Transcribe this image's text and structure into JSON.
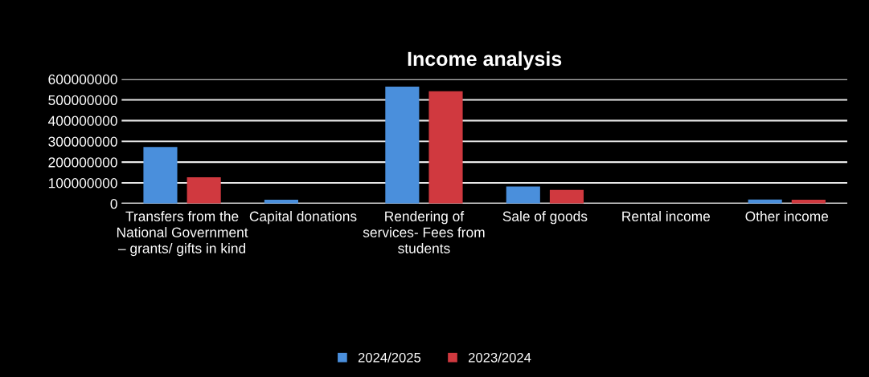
{
  "chart_data": {
    "type": "bar",
    "title": "Income analysis",
    "categories": [
      "Transfers from the National Government – grants/ gifts in kind",
      "Capital donations",
      "Rendering of services- Fees from students",
      "Sale of goods",
      "Rental income",
      "Other income"
    ],
    "series": [
      {
        "name": "2024/2025",
        "color": "#4a8fdc",
        "values": [
          273000000,
          19000000,
          564000000,
          82000000,
          0,
          20000000
        ]
      },
      {
        "name": "2023/2024",
        "color": "#d0393f",
        "values": [
          127000000,
          0,
          542000000,
          66000000,
          0,
          19000000
        ]
      }
    ],
    "ylim": [
      0,
      600000000
    ],
    "yticks": [
      0,
      100000000,
      200000000,
      300000000,
      400000000,
      500000000,
      600000000
    ],
    "grid": "y",
    "legend": "bottom"
  }
}
